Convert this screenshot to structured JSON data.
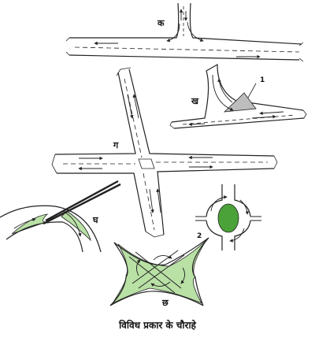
{
  "diagram": {
    "caption": "विविध प्रकार के चौराहे",
    "labels": {
      "t_junction": "क",
      "y_junction": "ख",
      "cross_junction": "ग",
      "flyover_merge": "घ",
      "cloverleaf": "छ",
      "marker_one": "1",
      "marker_two": "2"
    },
    "colors": {
      "island_green": "#b9e0a5",
      "roundabout_green": "#4aa238",
      "island_grey": "#bdbdbd",
      "line": "#222222"
    }
  }
}
